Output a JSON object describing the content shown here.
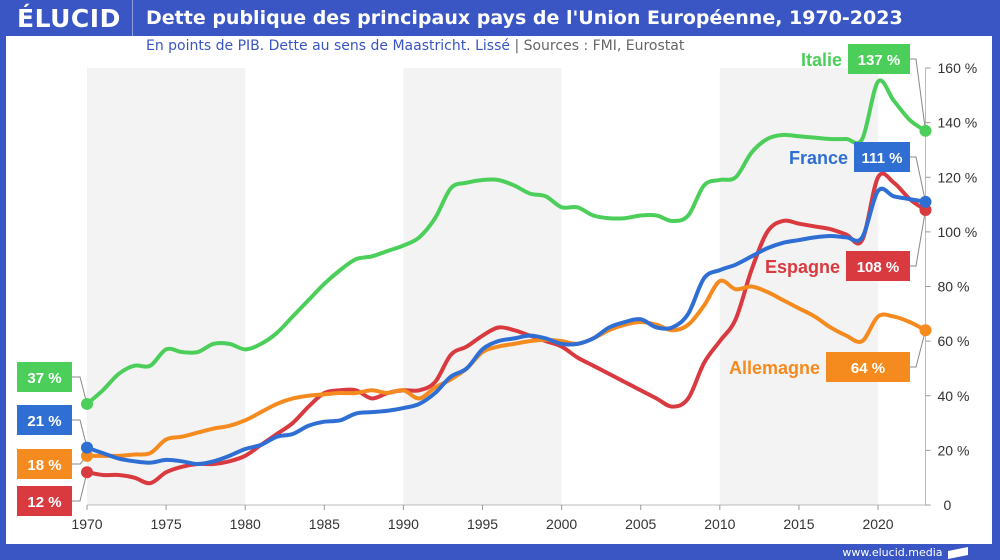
{
  "header": {
    "logo": "ÉLUCID",
    "title": "Dette publique des principaux pays de l'Union Européenne, 1970-2023"
  },
  "subtitle": {
    "main": "En points de PIB. Dette au sens de Maastricht. Lissé",
    "separator": "|",
    "sources": "Sources : FMI, Eurostat"
  },
  "footer": {
    "url": "www.elucid.media"
  },
  "colors": {
    "frame": "#3a55c4",
    "band": "#f3f3f3"
  },
  "chart_data": {
    "type": "line",
    "title": "Dette publique des principaux pays de l'Union Européenne, 1970-2023",
    "xlim": [
      1970,
      2023
    ],
    "ylim": [
      0,
      160
    ],
    "xticks": [
      "1970",
      "1975",
      "1980",
      "1985",
      "1990",
      "1995",
      "2000",
      "2005",
      "2010",
      "2015",
      "2020"
    ],
    "yticks": [
      "0",
      "20 %",
      "40 %",
      "60 %",
      "80 %",
      "100 %",
      "120 %",
      "140 %",
      "160 %"
    ],
    "x_start": 1970,
    "series": [
      {
        "name": "Italie",
        "color": "#4ccf5a",
        "start_label": "37 %",
        "end_label": "137 %",
        "values": [
          37,
          42,
          48,
          51,
          51,
          57,
          56,
          56,
          59,
          59,
          57,
          59,
          63,
          69,
          75,
          81,
          86,
          90,
          91,
          93,
          95,
          98,
          105,
          116,
          118,
          119,
          119,
          117,
          114,
          113,
          109,
          109,
          106,
          105,
          105,
          106,
          106,
          104,
          106,
          117,
          119,
          120,
          129,
          134,
          135.5,
          135,
          134.5,
          134,
          134,
          134,
          155,
          148,
          141,
          137
        ]
      },
      {
        "name": "Espagne",
        "color": "#d93a40",
        "start_label": "12 %",
        "end_label": "108 %",
        "values": [
          12,
          11,
          11,
          10,
          8,
          12,
          14,
          15,
          15,
          16,
          18,
          22,
          26,
          30,
          36,
          41,
          42,
          42,
          39,
          41,
          42,
          42,
          45,
          55,
          58,
          62,
          65,
          64,
          62,
          60,
          58,
          54,
          51,
          48,
          45,
          42,
          39,
          36,
          39,
          52,
          60,
          68,
          86,
          100,
          104,
          103,
          102,
          101,
          99,
          97,
          120,
          118,
          112,
          108
        ]
      },
      {
        "name": "Allemagne",
        "color": "#f58a1f",
        "start_label": "18 %",
        "end_label": "64 %",
        "values": [
          18,
          18,
          18,
          18.5,
          19,
          24,
          25,
          26.5,
          28,
          29,
          31,
          34,
          37,
          39,
          40,
          40.5,
          41,
          41,
          42,
          41,
          42,
          39,
          43,
          46,
          50,
          56,
          58,
          59,
          60,
          60.5,
          60,
          59,
          61,
          64,
          66,
          67,
          66,
          64,
          66,
          73,
          82,
          79,
          80,
          78,
          75,
          72,
          69,
          65,
          62,
          60,
          69,
          69,
          67,
          64
        ]
      },
      {
        "name": "France",
        "color": "#2f6fd3",
        "start_label": "21 %",
        "end_label": "111 %",
        "values": [
          21,
          19,
          17,
          16,
          15.5,
          16.5,
          16,
          15,
          16,
          18,
          20.5,
          22,
          25,
          26,
          29,
          30.5,
          31,
          33.5,
          34,
          34.5,
          35.5,
          37,
          41,
          47,
          50,
          57,
          60,
          61,
          62,
          61,
          59,
          59,
          61,
          65,
          67,
          68,
          65,
          65,
          70,
          83,
          86,
          88,
          91,
          94,
          96,
          97,
          98,
          98.5,
          98,
          98,
          115,
          113,
          112,
          111
        ]
      }
    ]
  }
}
